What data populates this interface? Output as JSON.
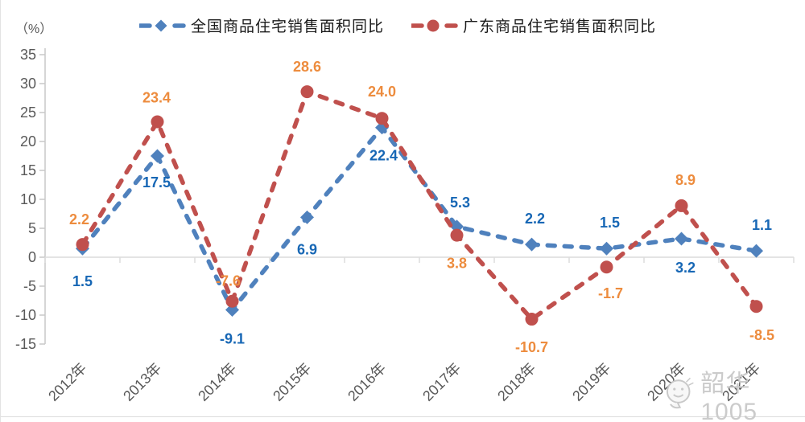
{
  "chart_data": {
    "type": "line",
    "unit_label": "（%）",
    "categories": [
      "2012年",
      "2013年",
      "2014年",
      "2015年",
      "2016年",
      "2017年",
      "2018年",
      "2019年",
      "2020年",
      "2021年"
    ],
    "series": [
      {
        "name": "全国商品住宅销售面积同比",
        "marker": "diamond",
        "color": "#4f81bd",
        "label_color": "#1767b5",
        "values": [
          1.5,
          17.5,
          -9.1,
          6.9,
          22.4,
          5.3,
          2.2,
          1.5,
          3.2,
          1.1
        ],
        "label_offsets": [
          [
            0,
            41
          ],
          [
            -1,
            33
          ],
          [
            0,
            36
          ],
          [
            0,
            40
          ],
          [
            2,
            35
          ],
          [
            4,
            -30
          ],
          [
            4,
            -32
          ],
          [
            4,
            -32
          ],
          [
            5,
            36
          ],
          [
            7,
            -32
          ]
        ]
      },
      {
        "name": "广东商品住宅销售面积同比",
        "marker": "circle",
        "color": "#c0504d",
        "label_color": "#ed8c3e",
        "values": [
          2.2,
          23.4,
          -7.6,
          28.6,
          24.0,
          3.8,
          -10.7,
          -1.7,
          8.9,
          -8.5
        ],
        "label_offsets": [
          [
            -4,
            -31
          ],
          [
            -1,
            -30
          ],
          [
            -5,
            -25
          ],
          [
            0,
            -31
          ],
          [
            0,
            -33
          ],
          [
            0,
            35
          ],
          [
            0,
            35
          ],
          [
            5,
            33
          ],
          [
            5,
            -32
          ],
          [
            7,
            36
          ]
        ]
      }
    ],
    "ylim": [
      -15,
      35
    ],
    "ytick_step": 5,
    "grid": "zero-line-only",
    "legend_position": "top",
    "axis_text_color": "#595959",
    "axis_line_color": "#c9c9c9",
    "zero_line_color": "#dcdcdc",
    "label_decimals": 1
  },
  "watermark": {
    "text": "韶华1005",
    "icon": "face-emoji-icon"
  }
}
